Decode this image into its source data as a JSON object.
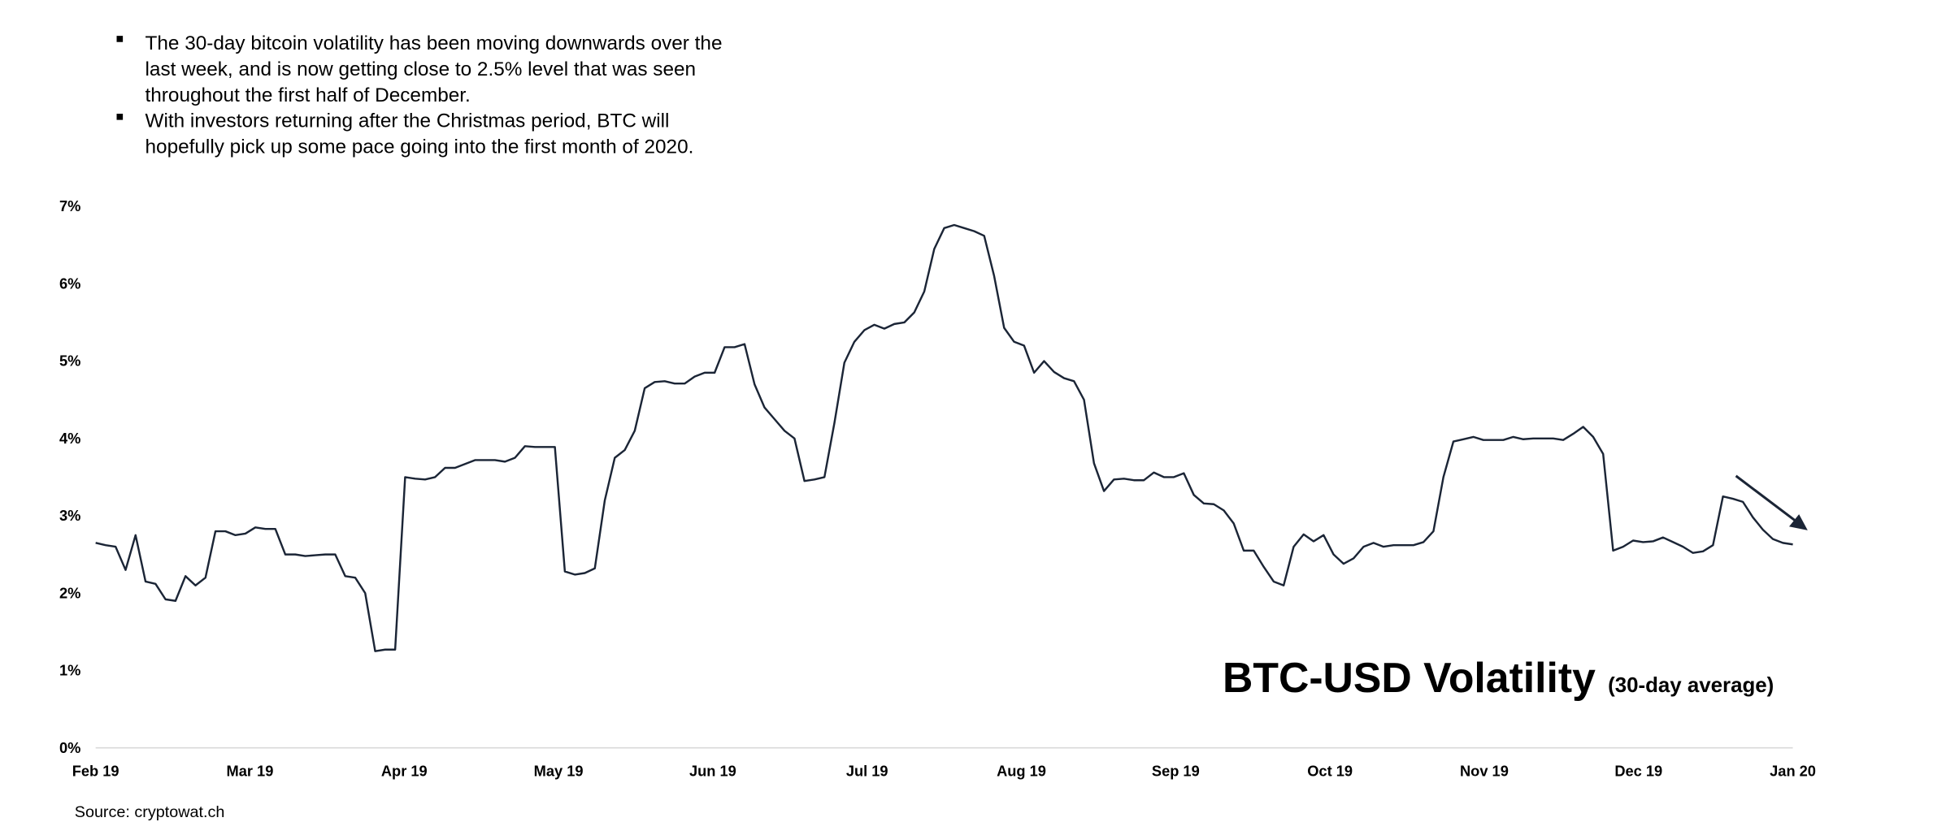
{
  "bullets": [
    [
      "The 30-day bitcoin volatility has been moving downwards over the",
      "last week, and is now getting close to 2.5% level that was seen",
      "throughout the first half of December."
    ],
    [
      "With investors returning after the Christmas period, BTC will",
      "hopefully pick up some pace going into the first month of 2020."
    ]
  ],
  "chart_data": {
    "type": "line",
    "title": "BTC-USD Volatility",
    "subtitle": "(30-day average)",
    "source": "Source: cryptowat.ch",
    "color": "#1b2536",
    "xtick_labels": [
      "Feb 19",
      "Mar 19",
      "Apr 19",
      "May 19",
      "Jun 19",
      "Jul 19",
      "Aug 19",
      "Sep 19",
      "Oct 19",
      "Nov 19",
      "Dec 19",
      "Jan 20"
    ],
    "values": [
      2.65,
      2.62,
      2.6,
      2.3,
      2.75,
      2.15,
      2.12,
      1.92,
      1.9,
      2.22,
      2.1,
      2.2,
      2.8,
      2.8,
      2.75,
      2.77,
      2.85,
      2.83,
      2.83,
      2.5,
      2.5,
      2.48,
      2.49,
      2.5,
      2.5,
      2.22,
      2.2,
      2.0,
      1.25,
      1.27,
      1.27,
      3.5,
      3.48,
      3.47,
      3.5,
      3.62,
      3.62,
      3.67,
      3.72,
      3.72,
      3.72,
      3.7,
      3.75,
      3.9,
      3.89,
      3.89,
      3.89,
      2.28,
      2.24,
      2.26,
      2.32,
      3.2,
      3.75,
      3.85,
      4.1,
      4.65,
      4.73,
      4.74,
      4.71,
      4.71,
      4.8,
      4.85,
      4.85,
      5.18,
      5.18,
      5.22,
      4.7,
      4.4,
      4.25,
      4.1,
      4.0,
      3.45,
      3.47,
      3.5,
      4.2,
      4.98,
      5.25,
      5.4,
      5.47,
      5.42,
      5.48,
      5.5,
      5.63,
      5.9,
      6.45,
      6.72,
      6.76,
      6.72,
      6.68,
      6.62,
      6.1,
      5.43,
      5.25,
      5.2,
      4.85,
      5.0,
      4.86,
      4.78,
      4.74,
      4.5,
      3.68,
      3.32,
      3.47,
      3.48,
      3.46,
      3.46,
      3.56,
      3.5,
      3.5,
      3.55,
      3.27,
      3.16,
      3.15,
      3.07,
      2.9,
      2.55,
      2.55,
      2.34,
      2.15,
      2.1,
      2.6,
      2.76,
      2.67,
      2.75,
      2.5,
      2.38,
      2.45,
      2.6,
      2.65,
      2.6,
      2.62,
      2.62,
      2.62,
      2.66,
      2.8,
      3.5,
      3.96,
      3.99,
      4.02,
      3.98,
      3.98,
      3.98,
      4.02,
      3.99,
      4.0,
      4.0,
      4.0,
      3.98,
      4.06,
      4.15,
      4.02,
      3.8,
      2.55,
      2.6,
      2.68,
      2.66,
      2.67,
      2.72,
      2.66,
      2.6,
      2.52,
      2.54,
      2.62,
      3.25,
      3.22,
      3.18,
      2.98,
      2.82,
      2.7,
      2.65,
      2.63
    ],
    "ylim": [
      0,
      7
    ],
    "yticks": [
      {
        "value": 0,
        "label": "0%"
      },
      {
        "value": 1,
        "label": "1%"
      },
      {
        "value": 2,
        "label": "2%"
      },
      {
        "value": 3,
        "label": "3%"
      },
      {
        "value": 4,
        "label": "4%"
      },
      {
        "value": 5,
        "label": "5%"
      },
      {
        "value": 6,
        "label": "6%"
      },
      {
        "value": 7,
        "label": "7%"
      }
    ],
    "grid": false
  }
}
